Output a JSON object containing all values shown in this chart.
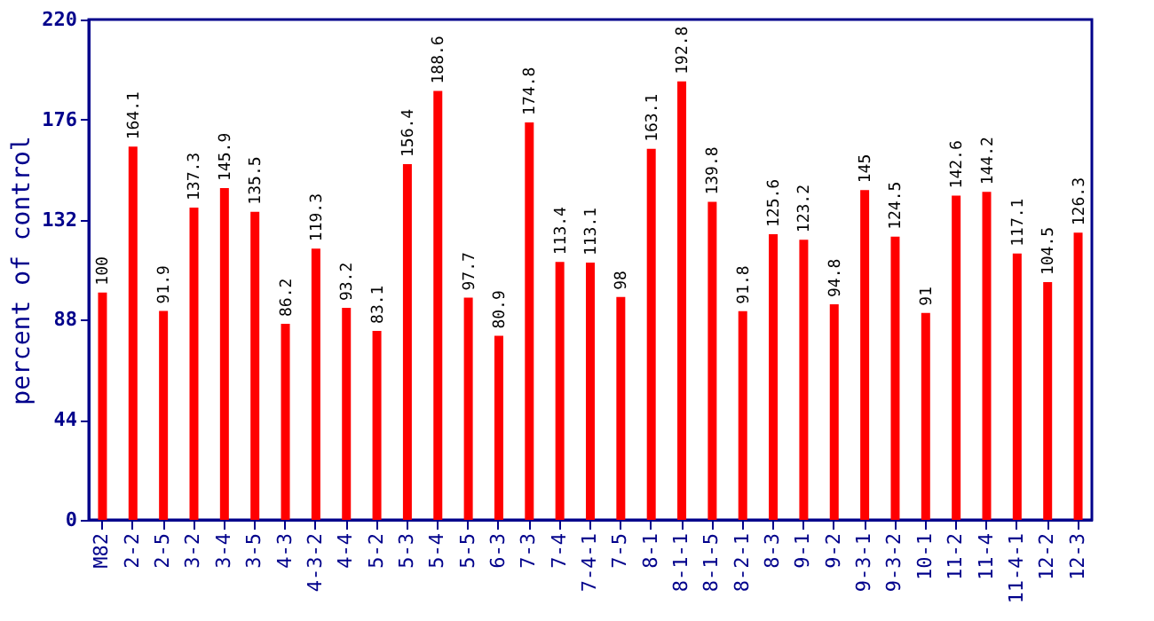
{
  "chart_data": {
    "type": "bar",
    "ylabel": "percent of control",
    "categories": [
      "M82",
      "2-2",
      "2-5",
      "3-2",
      "3-4",
      "3-5",
      "4-3",
      "4-3-2",
      "4-4",
      "5-2",
      "5-3",
      "5-4",
      "5-5",
      "6-3",
      "7-3",
      "7-4",
      "7-4-1",
      "7-5",
      "8-1",
      "8-1-1",
      "8-1-5",
      "8-2-1",
      "8-3",
      "9-1",
      "9-2",
      "9-3-1",
      "9-3-2",
      "10-1",
      "11-2",
      "11-4",
      "11-4-1",
      "12-2",
      "12-3"
    ],
    "values": [
      100,
      164.1,
      91.9,
      137.3,
      145.9,
      135.5,
      86.2,
      119.3,
      93.2,
      83.1,
      156.4,
      188.6,
      97.7,
      80.9,
      174.8,
      113.4,
      113.1,
      98,
      163.1,
      192.8,
      139.8,
      91.8,
      125.6,
      123.2,
      94.8,
      145,
      124.5,
      91,
      142.6,
      144.2,
      117.1,
      104.5,
      126.3
    ],
    "color": "#ff0000",
    "ylim": [
      0,
      220
    ],
    "yticks": [
      0,
      44,
      88,
      132,
      176,
      220
    ],
    "grid": false,
    "data_labels": true
  }
}
